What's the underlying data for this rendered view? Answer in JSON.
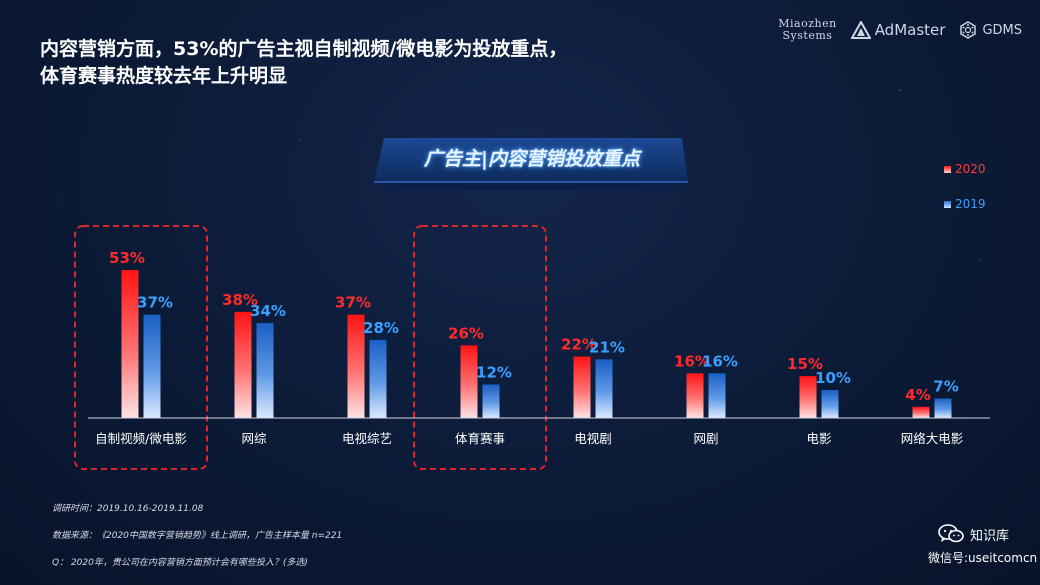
{
  "header": {
    "title_line1": "内容营销方面，53%的广告主视自制视频/微电影为投放重点，",
    "title_line2": "体育赛事热度较去年上升明显"
  },
  "logos": {
    "miaozhen_line1": "Miaozhen",
    "miaozhen_line2": "Systems",
    "admaster": "AdMaster",
    "gdms": "GDMS"
  },
  "colors": {
    "accent_2020": "#ff1a1a",
    "accent_2019": "#1f6fd6",
    "highlight_box": "#e0242b",
    "background": "#0b1a36"
  },
  "chart_data": {
    "type": "bar",
    "title": "广告主|内容营销投放重点",
    "categories": [
      "自制视频/微电影",
      "网综",
      "电视综艺",
      "体育赛事",
      "电视剧",
      "网剧",
      "电影",
      "网络大电影"
    ],
    "series": [
      {
        "name": "2020",
        "values": [
          53,
          38,
          37,
          26,
          22,
          16,
          15,
          4
        ],
        "labels": [
          "53%",
          "38%",
          "37%",
          "26%",
          "22%",
          "16%",
          "15%",
          "4%"
        ]
      },
      {
        "name": "2019",
        "values": [
          37,
          34,
          28,
          12,
          21,
          16,
          10,
          7
        ],
        "labels": [
          "37%",
          "34%",
          "28%",
          "12%",
          "21%",
          "16%",
          "10%",
          "7%"
        ]
      }
    ],
    "highlighted_categories": [
      "自制视频/微电影",
      "体育赛事"
    ],
    "ylim": [
      0,
      53
    ],
    "legend_position": "top-right",
    "grid": false
  },
  "footer": {
    "survey_time": "调研时间：2019.10.16-2019.11.08",
    "source": "数据来源：《2020中国数字营销趋势》线上调研，广告主样本量 n=221",
    "question": "Q： 2020年，贵公司在内容营销方面预计会有哪些投入？(多选)"
  },
  "wechat": {
    "name": "知识库",
    "id": "微信号:useitcomcn",
    "icon": "wechat-icon"
  }
}
